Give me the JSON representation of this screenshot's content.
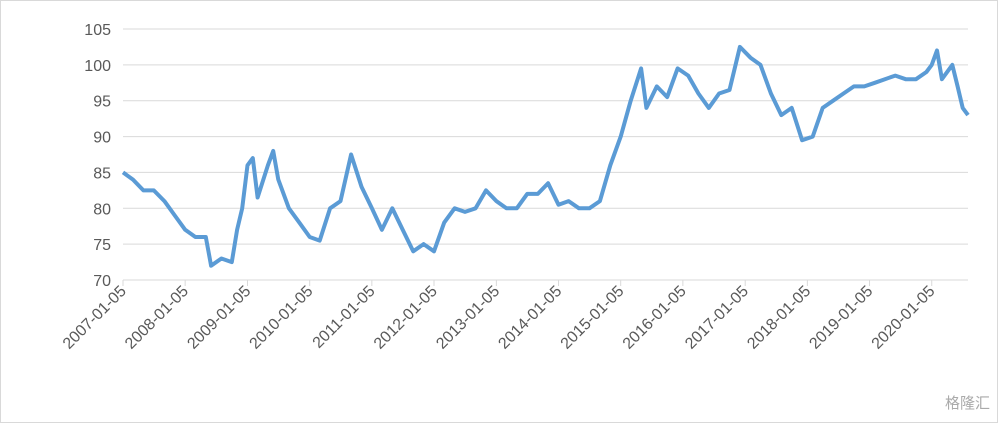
{
  "chart_data": {
    "type": "line",
    "x": [
      "2007-01-05",
      "2007-03-05",
      "2007-05-05",
      "2007-07-05",
      "2007-09-05",
      "2007-11-05",
      "2008-01-05",
      "2008-03-05",
      "2008-05-05",
      "2008-06-05",
      "2008-08-05",
      "2008-10-05",
      "2008-11-05",
      "2008-12-05",
      "2009-01-05",
      "2009-02-05",
      "2009-03-05",
      "2009-05-05",
      "2009-06-05",
      "2009-07-05",
      "2009-09-05",
      "2009-11-05",
      "2010-01-05",
      "2010-03-05",
      "2010-05-05",
      "2010-07-05",
      "2010-09-05",
      "2010-11-05",
      "2011-01-05",
      "2011-03-05",
      "2011-05-05",
      "2011-07-05",
      "2011-09-05",
      "2011-11-05",
      "2012-01-05",
      "2012-03-05",
      "2012-05-05",
      "2012-07-05",
      "2012-09-05",
      "2012-11-05",
      "2013-01-05",
      "2013-03-05",
      "2013-05-05",
      "2013-07-05",
      "2013-09-05",
      "2013-11-05",
      "2014-01-05",
      "2014-03-05",
      "2014-05-05",
      "2014-07-05",
      "2014-09-05",
      "2014-11-05",
      "2015-01-05",
      "2015-03-05",
      "2015-05-05",
      "2015-06-05",
      "2015-08-05",
      "2015-10-05",
      "2015-12-05",
      "2016-02-05",
      "2016-04-05",
      "2016-06-05",
      "2016-08-05",
      "2016-10-05",
      "2016-12-05",
      "2017-02-05",
      "2017-04-05",
      "2017-06-05",
      "2017-08-05",
      "2017-10-05",
      "2017-12-05",
      "2018-02-05",
      "2018-04-05",
      "2018-06-05",
      "2018-08-05",
      "2018-10-05",
      "2018-12-05",
      "2019-02-05",
      "2019-04-05",
      "2019-06-05",
      "2019-08-05",
      "2019-10-05",
      "2019-12-05",
      "2020-01-05",
      "2020-02-05",
      "2020-03-05",
      "2020-05-05",
      "2020-06-05",
      "2020-07-05",
      "2020-08-05"
    ],
    "series": [
      {
        "color": "#5b9bd5",
        "values": [
          85,
          84,
          82.5,
          82.5,
          81,
          79,
          77,
          76,
          76,
          72,
          73,
          72.5,
          77,
          80,
          86,
          87,
          81.5,
          86,
          88,
          84,
          80,
          78,
          76,
          75.5,
          80,
          81,
          87.5,
          83,
          80,
          77,
          80,
          77,
          74,
          75,
          74,
          78,
          80,
          79.5,
          80,
          82.5,
          81,
          80,
          80,
          82,
          82,
          83.5,
          80.5,
          81,
          80,
          80,
          81,
          86,
          90,
          95,
          99.5,
          94,
          97,
          95.5,
          99.5,
          98.5,
          96,
          94,
          96,
          96.5,
          102.5,
          101,
          100,
          96,
          93,
          94,
          89.5,
          90,
          94,
          95,
          96,
          97,
          97,
          97.5,
          98,
          98.5,
          98,
          98,
          99,
          100,
          102,
          98,
          100,
          97,
          94,
          93
        ]
      }
    ],
    "xlim": [
      "2007-01-05",
      "2020-08-05"
    ],
    "xticks": [
      "2007-01-05",
      "2008-01-05",
      "2009-01-05",
      "2010-01-05",
      "2011-01-05",
      "2012-01-05",
      "2013-01-05",
      "2014-01-05",
      "2015-01-05",
      "2016-01-05",
      "2017-01-05",
      "2018-01-05",
      "2019-01-05",
      "2020-01-05"
    ],
    "ylim": [
      70,
      105
    ],
    "yticks": [
      70,
      75,
      80,
      85,
      90,
      95,
      100,
      105
    ],
    "grid": true,
    "watermark": "格隆汇"
  }
}
